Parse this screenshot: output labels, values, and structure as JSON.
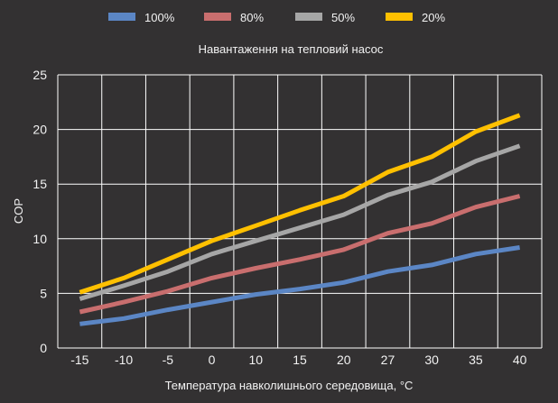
{
  "chart_data": {
    "type": "line",
    "subtitle": "Навантаження на тепловий насос",
    "xlabel": "Температура навколишнього середовища, °С",
    "ylabel": "COP",
    "categories": [
      "-15",
      "-10",
      "-5",
      "0",
      "10",
      "15",
      "20",
      "27",
      "30",
      "35",
      "40"
    ],
    "ylim": [
      0,
      25
    ],
    "yticks": [
      0,
      5,
      10,
      15,
      20,
      25
    ],
    "grid": true,
    "legend_position": "top",
    "series": [
      {
        "name": "100%",
        "color": "#5b86c5",
        "values": [
          2.2,
          2.7,
          3.5,
          4.2,
          4.9,
          5.4,
          6.0,
          7.0,
          7.6,
          8.6,
          9.2
        ]
      },
      {
        "name": "80%",
        "color": "#c96e6e",
        "values": [
          3.3,
          4.2,
          5.2,
          6.4,
          7.3,
          8.1,
          9.0,
          10.5,
          11.4,
          12.9,
          13.9
        ]
      },
      {
        "name": "50%",
        "color": "#a6a6a6",
        "values": [
          4.5,
          5.7,
          7.0,
          8.6,
          9.8,
          11.0,
          12.2,
          14.0,
          15.2,
          17.1,
          18.5
        ]
      },
      {
        "name": "20%",
        "color": "#ffc000",
        "values": [
          5.1,
          6.4,
          8.1,
          9.8,
          11.2,
          12.6,
          13.9,
          16.1,
          17.5,
          19.8,
          21.3
        ]
      }
    ]
  }
}
